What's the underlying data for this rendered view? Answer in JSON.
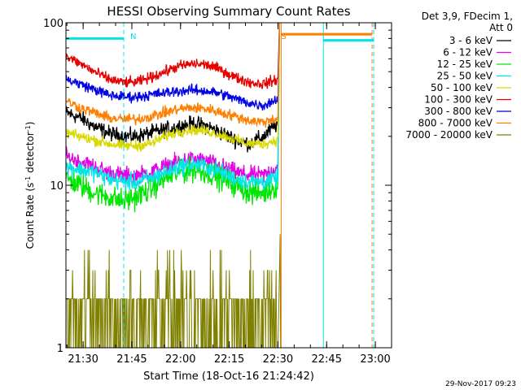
{
  "chart_data": {
    "type": "line",
    "title": "HESSI Observing Summary Count Rates",
    "ylabel": "Count Rate (s⁻¹ detector⁻¹)",
    "ylabel_base": "Count Rate (s",
    "ylabel_mid": " detector",
    "ylabel_end": ")",
    "ylabel_sup": "-1",
    "xlabel": "Start Time (18-Oct-16 21:24:42)",
    "yscale": "log",
    "ylim": [
      1,
      100
    ],
    "xlim": [
      "21:24:42",
      "23:05:00"
    ],
    "x_ticks": [
      "21:30",
      "21:45",
      "22:00",
      "22:15",
      "22:30",
      "22:45",
      "23:00"
    ],
    "y_ticks": [
      "1",
      "10",
      "100"
    ],
    "legend_header": [
      "Det 3,9, FDecim 1,",
      "Att 0"
    ],
    "footer_date": "29-Nov-2017 09:23",
    "annotations": [
      {
        "text": "N",
        "color": "#00e5e5",
        "time": "21:43:00"
      },
      {
        "text": "S",
        "color": "#ff7f00",
        "time": "22:29:30"
      }
    ],
    "markers": {
      "night_bar": {
        "color": "#00e5e5",
        "start": "21:24:42",
        "end": "21:42:30",
        "level": 80
      },
      "night_bar2": {
        "color": "#00e5e5",
        "start": "22:44:00",
        "end": "22:59:30",
        "level": 78
      },
      "saa_bar": {
        "color": "#ff7f00",
        "start": "22:31:00",
        "end": "22:59:00",
        "level": 85
      },
      "cyan_lines_solid": [
        "21:24:42",
        "22:44:00"
      ],
      "cyan_lines_dashed": [
        "21:42:30",
        "22:59:30"
      ],
      "orange_lines_solid": [
        "22:31:00"
      ],
      "orange_lines_dashed": [
        "22:59:00"
      ]
    },
    "series": [
      {
        "name": "3 - 6 keV",
        "color": "#000000",
        "profile": [
          28,
          26,
          23,
          21,
          20,
          20,
          21,
          22,
          23,
          24,
          23,
          21,
          19,
          18,
          20,
          24
        ],
        "noise": 0.07
      },
      {
        "name": "6 - 12 keV",
        "color": "#e600e6",
        "profile": [
          15,
          14,
          13,
          12,
          11.5,
          11.5,
          12,
          13,
          14,
          14.5,
          14,
          13,
          12,
          11.5,
          11.5,
          13
        ],
        "noise": 0.08
      },
      {
        "name": "12 - 25 keV",
        "color": "#00e600",
        "profile": [
          11,
          10,
          9,
          8.5,
          8,
          8.5,
          9.5,
          11,
          12,
          12.5,
          12,
          11,
          10,
          9,
          9,
          10
        ],
        "noise": 0.11
      },
      {
        "name": "25 - 50 keV",
        "color": "#00e5e5",
        "profile": [
          13,
          12.5,
          12,
          11,
          10.5,
          10.5,
          11,
          12,
          13,
          13.5,
          13,
          12,
          11,
          10.5,
          10.5,
          11
        ],
        "noise": 0.08
      },
      {
        "name": "50 - 100 keV",
        "color": "#d9d900",
        "profile": [
          21,
          20,
          19,
          18,
          17.5,
          17.5,
          18,
          20,
          21.5,
          22,
          21.5,
          20.5,
          19,
          18,
          18,
          19
        ],
        "noise": 0.05
      },
      {
        "name": "100 - 300 keV",
        "color": "#e60000",
        "profile": [
          62,
          56,
          50,
          45,
          43,
          43,
          46,
          50,
          54,
          56,
          55,
          51,
          46,
          43,
          42,
          45
        ],
        "noise": 0.05
      },
      {
        "name": "300 - 800 keV",
        "color": "#0000e6",
        "profile": [
          45,
          42,
          39,
          36,
          35,
          35,
          36,
          37,
          38,
          38.5,
          38,
          36.5,
          34,
          32,
          31,
          34
        ],
        "noise": 0.05
      },
      {
        "name": "800 - 7000 keV",
        "color": "#ff7f00",
        "profile": [
          33,
          30,
          28,
          26,
          25.5,
          25.5,
          26.5,
          28,
          29.5,
          30,
          29.5,
          28,
          26.5,
          25,
          24.5,
          26
        ],
        "noise": 0.05
      },
      {
        "name": "7000 - 20000 keV",
        "color": "#7f7f00",
        "profile": [
          1.5,
          1.4,
          1.3,
          1.2,
          1.4,
          1.3,
          1.6,
          1.8,
          1.8,
          1.7,
          1.5,
          1.3,
          1.2,
          1.2,
          1.3,
          1.4
        ],
        "noise": 0.3
      }
    ],
    "data_end_time": "22:30:00"
  }
}
